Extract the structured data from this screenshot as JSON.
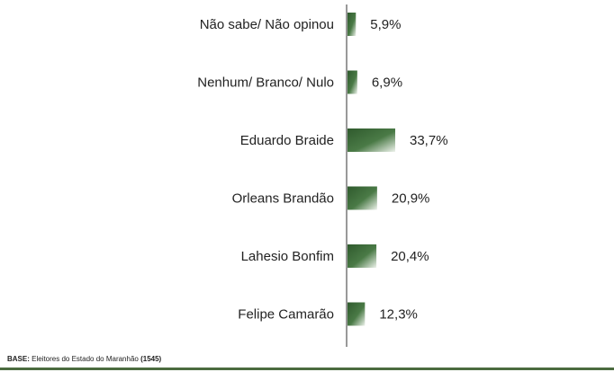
{
  "chart_data": {
    "type": "bar",
    "orientation": "horizontal",
    "categories": [
      "Não sabe/ Não opinou",
      "Nenhum/ Branco/ Nulo",
      "Eduardo Braide",
      "Orleans Brandão",
      "Lahesio Bonfim",
      "Felipe Camarão"
    ],
    "values": [
      5.9,
      6.9,
      33.7,
      20.9,
      20.4,
      12.3
    ],
    "value_labels": [
      "5,9%",
      "6,9%",
      "33,7%",
      "20,9%",
      "20,4%",
      "12,3%"
    ],
    "title": "",
    "xlabel": "",
    "ylabel": "",
    "bar_color": "#3f6a3d",
    "bar_highlight": "#e9efe6"
  },
  "footer": {
    "base_label": "BASE:",
    "base_text": " Eleitores do Estado do Maranhão ",
    "base_count": "(1545)",
    "line_color": "#4b6b3f"
  }
}
